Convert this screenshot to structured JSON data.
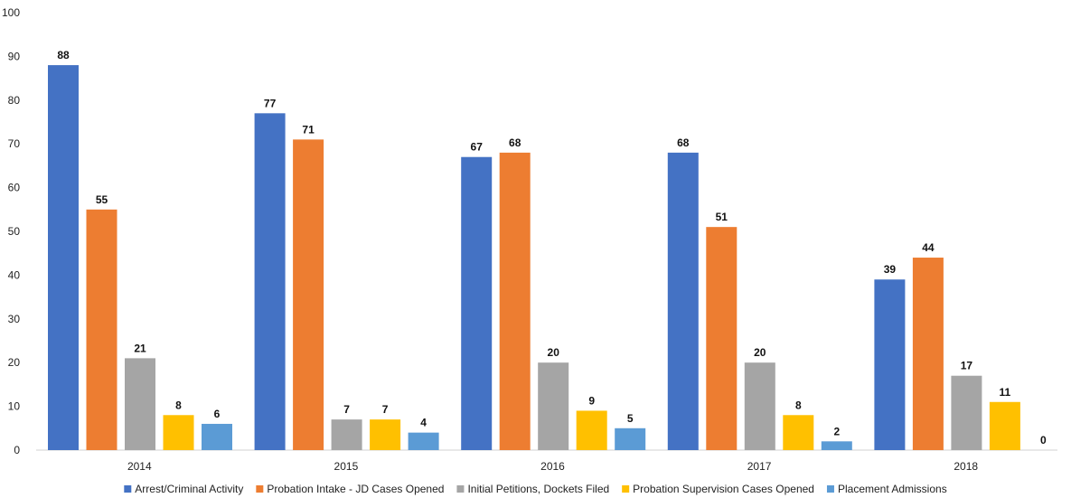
{
  "chart_data": {
    "type": "bar",
    "categories": [
      "2014",
      "2015",
      "2016",
      "2017",
      "2018"
    ],
    "series": [
      {
        "name": "Arrest/Criminal Activity",
        "color": "#4472C4",
        "values": [
          88,
          77,
          67,
          68,
          39
        ]
      },
      {
        "name": "Probation Intake - JD Cases Opened",
        "color": "#ED7D31",
        "values": [
          55,
          71,
          68,
          51,
          44
        ]
      },
      {
        "name": "Initial Petitions, Dockets Filed",
        "color": "#A5A5A5",
        "values": [
          21,
          7,
          20,
          20,
          17
        ]
      },
      {
        "name": "Probation Supervision Cases Opened",
        "color": "#FFC000",
        "values": [
          8,
          7,
          9,
          8,
          11
        ]
      },
      {
        "name": "Placement Admissions",
        "color": "#5B9BD5",
        "values": [
          6,
          4,
          5,
          2,
          0
        ]
      }
    ],
    "ylim": [
      0,
      100
    ],
    "yticks": [
      0,
      10,
      20,
      30,
      40,
      50,
      60,
      70,
      80,
      90,
      100
    ],
    "title": "",
    "xlabel": "",
    "ylabel": "",
    "grid": false,
    "legend_position": "bottom",
    "data_labels": true
  }
}
